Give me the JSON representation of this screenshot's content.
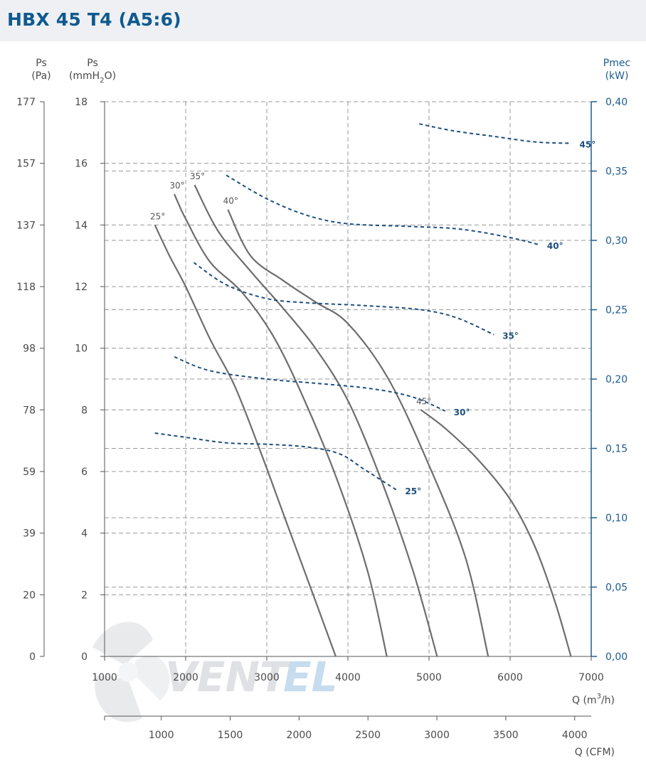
{
  "header": {
    "title": "HBX 45 T4 (A5:6)"
  },
  "chart_data": {
    "type": "line",
    "title": "HBX 45 T4 (A5:6)",
    "axes": {
      "left_pa": {
        "label": "Ps",
        "unit": "(Pa)",
        "ticks": [
          "177",
          "157",
          "137",
          "118",
          "98",
          "78",
          "59",
          "39",
          "20",
          "0"
        ],
        "range": [
          0,
          177
        ]
      },
      "left_mmh2o": {
        "label": "Ps",
        "unit_pre": "(mmH",
        "unit_sub": "2",
        "unit_post": "O)",
        "ticks": [
          "18",
          "16",
          "14",
          "12",
          "10",
          "8",
          "6",
          "4",
          "2",
          "0"
        ],
        "range": [
          0,
          18
        ]
      },
      "right_kw": {
        "label": "Pmec",
        "unit": "(kW)",
        "ticks": [
          "0,40",
          "0,35",
          "0,30",
          "0,25",
          "0,20",
          "0,15",
          "0,10",
          "0,05",
          "0,00"
        ],
        "range": [
          0,
          0.4
        ]
      },
      "x_m3h": {
        "label_pre": "Q (m",
        "label_sup": "3",
        "label_post": "/h)",
        "ticks": [
          "1000",
          "2000",
          "3000",
          "4000",
          "5000",
          "6000",
          "7000"
        ],
        "range": [
          1000,
          7000
        ]
      },
      "x_cfm": {
        "label": "Q (CFM)",
        "ticks": [
          "1000",
          "1500",
          "2000",
          "2500",
          "3000",
          "3500",
          "4000"
        ]
      }
    },
    "pressure_series": [
      {
        "name": "25°",
        "label": "25°",
        "points": [
          [
            1620,
            14
          ],
          [
            1800,
            13
          ],
          [
            2000,
            12
          ],
          [
            2300,
            10.3
          ],
          [
            2600,
            8.8
          ],
          [
            2900,
            6.8
          ],
          [
            3250,
            4.3
          ],
          [
            3600,
            1.8
          ],
          [
            3850,
            0
          ]
        ]
      },
      {
        "name": "30°",
        "label": "30°",
        "points": [
          [
            1860,
            15
          ],
          [
            2000,
            14.2
          ],
          [
            2300,
            12.8
          ],
          [
            2700,
            11.8
          ],
          [
            3100,
            10.3
          ],
          [
            3500,
            8.1
          ],
          [
            3900,
            5.5
          ],
          [
            4250,
            2.7
          ],
          [
            4480,
            0
          ]
        ]
      },
      {
        "name": "35°",
        "label": "35°",
        "points": [
          [
            2110,
            15.3
          ],
          [
            2400,
            13.8
          ],
          [
            2800,
            12.5
          ],
          [
            3200,
            11.3
          ],
          [
            3600,
            10
          ],
          [
            4000,
            8.3
          ],
          [
            4400,
            5.8
          ],
          [
            4800,
            2.8
          ],
          [
            5100,
            0
          ]
        ]
      },
      {
        "name": "40°",
        "label": "40°",
        "points": [
          [
            2520,
            14.5
          ],
          [
            2800,
            13
          ],
          [
            3200,
            12.2
          ],
          [
            3600,
            11.5
          ],
          [
            4000,
            10.8
          ],
          [
            4500,
            9
          ],
          [
            5000,
            6.2
          ],
          [
            5450,
            3.2
          ],
          [
            5730,
            0
          ]
        ]
      },
      {
        "name": "45°",
        "label": "45°",
        "points": [
          [
            4900,
            8
          ],
          [
            5200,
            7.4
          ],
          [
            5600,
            6.4
          ],
          [
            6000,
            5.1
          ],
          [
            6300,
            3.6
          ],
          [
            6550,
            1.8
          ],
          [
            6750,
            0
          ]
        ]
      }
    ],
    "power_series": [
      {
        "name": "25°",
        "label": "25°",
        "points": [
          [
            1620,
            0.161
          ],
          [
            2000,
            0.158
          ],
          [
            2500,
            0.154
          ],
          [
            3000,
            0.153
          ],
          [
            3500,
            0.151
          ],
          [
            3900,
            0.146
          ],
          [
            4200,
            0.135
          ],
          [
            4600,
            0.12
          ]
        ]
      },
      {
        "name": "30°",
        "label": "30°",
        "points": [
          [
            1860,
            0.216
          ],
          [
            2300,
            0.206
          ],
          [
            3000,
            0.2
          ],
          [
            3600,
            0.197
          ],
          [
            4300,
            0.193
          ],
          [
            4800,
            0.187
          ],
          [
            5200,
            0.177
          ]
        ]
      },
      {
        "name": "35°",
        "label": "35°",
        "points": [
          [
            2100,
            0.284
          ],
          [
            2500,
            0.268
          ],
          [
            3000,
            0.258
          ],
          [
            3500,
            0.255
          ],
          [
            4200,
            0.253
          ],
          [
            4900,
            0.25
          ],
          [
            5350,
            0.244
          ],
          [
            5800,
            0.232
          ]
        ]
      },
      {
        "name": "40°",
        "label": "40°",
        "points": [
          [
            2500,
            0.347
          ],
          [
            3000,
            0.33
          ],
          [
            3500,
            0.318
          ],
          [
            4000,
            0.312
          ],
          [
            4800,
            0.31
          ],
          [
            5400,
            0.308
          ],
          [
            6000,
            0.302
          ],
          [
            6350,
            0.297
          ]
        ]
      },
      {
        "name": "45°",
        "label": "45°",
        "points": [
          [
            4880,
            0.384
          ],
          [
            5300,
            0.379
          ],
          [
            5800,
            0.375
          ],
          [
            6300,
            0.371
          ],
          [
            6750,
            0.37
          ]
        ]
      }
    ],
    "grid": true,
    "colors": {
      "curve": "#6d6d6d",
      "power": "#1d4f7e",
      "grid": "#9a9a9a",
      "right_axis": "#1d5c8f",
      "title": "#0f5a8e"
    }
  },
  "watermark": {
    "text_a": "VENT",
    "text_b": "EL"
  }
}
